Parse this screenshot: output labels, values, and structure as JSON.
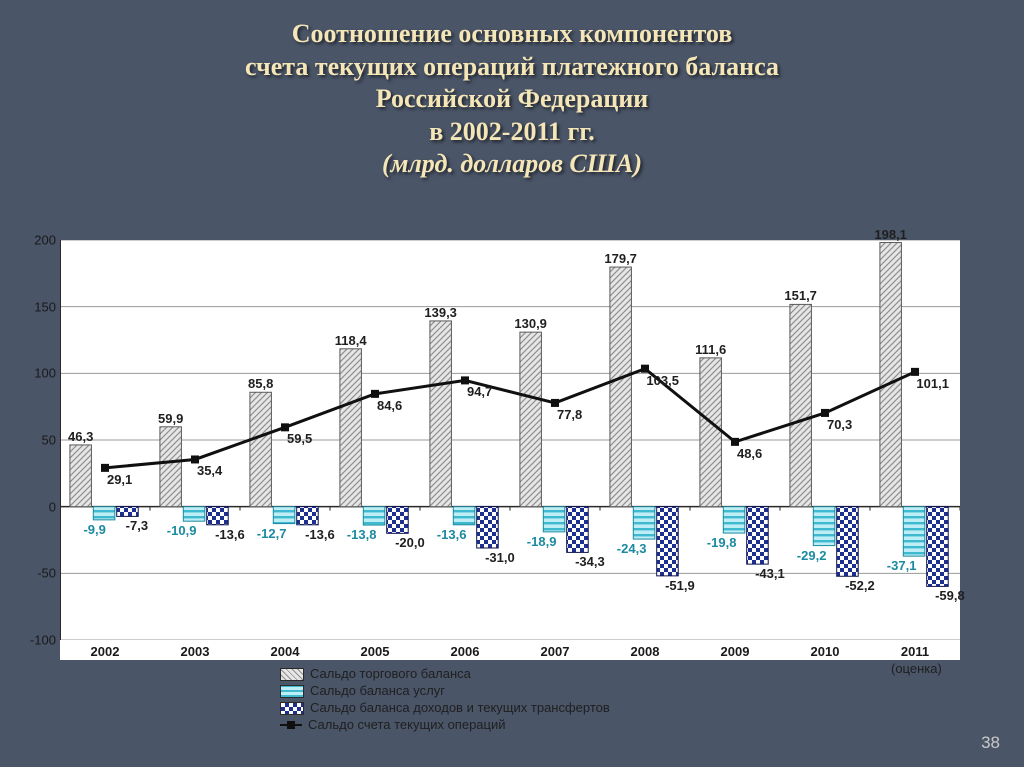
{
  "title": {
    "lines": [
      "Соотношение основных компонентов",
      "счета текущих операций платежного баланса",
      "Российской Федерации",
      "в 2002-2011 гг."
    ],
    "subtitle": "(млрд. долларов США)",
    "color": "#f5e6b8",
    "fontsize": 26
  },
  "page_number": "38",
  "background_color": "#4a5568",
  "chart": {
    "type": "bar+line",
    "background_color": "#ffffff",
    "font_family": "Arial",
    "ylim": [
      -100,
      200
    ],
    "ytick_step": 50,
    "yticks": [
      -100,
      -50,
      0,
      50,
      100,
      150,
      200
    ],
    "gridline_color": "#9a9a9a",
    "axis_color": "#2a2a2a",
    "categories": [
      "2002",
      "2003",
      "2004",
      "2005",
      "2006",
      "2007",
      "2008",
      "2009",
      "2010",
      "2011"
    ],
    "x_note": {
      "index": 9,
      "text": "(оценка)"
    },
    "series": [
      {
        "key": "trade",
        "name": "Сальдо торгового баланса",
        "type": "bar",
        "pattern": "diagonal",
        "fill": "#bfbfbf",
        "stroke": "#5a5a5a",
        "label_color": "#1f1f1f",
        "values": [
          46.3,
          59.9,
          85.8,
          118.4,
          139.3,
          130.9,
          179.7,
          111.6,
          151.7,
          198.1
        ],
        "labels": [
          "46,3",
          "59,9",
          "85,8",
          "118,4",
          "139,3",
          "130,9",
          "179,7",
          "111,6",
          "151,7",
          "198,1"
        ]
      },
      {
        "key": "services",
        "name": "Сальдо баланса услуг",
        "type": "bar",
        "pattern": "hstripe",
        "fill": "#7fd8e6",
        "stroke": "#1a8aa0",
        "label_color": "#1a8aa0",
        "values": [
          -9.9,
          -10.9,
          -12.7,
          -13.8,
          -13.6,
          -18.9,
          -24.3,
          -19.8,
          -29.2,
          -37.1
        ],
        "labels": [
          "-9,9",
          "-10,9",
          "-12,7",
          "-13,8",
          "-13,6",
          "-18,9",
          "-24,3",
          "-19,8",
          "-29,2",
          "-37,1"
        ]
      },
      {
        "key": "income",
        "name": "Сальдо баланса доходов и текущих трансфертов",
        "type": "bar",
        "pattern": "checker",
        "fill": "#1d2f8f",
        "stroke": "#0e1550",
        "label_color": "#1f1f1f",
        "values": [
          -7.3,
          -13.6,
          -13.6,
          -20.0,
          -31.0,
          -34.3,
          -51.9,
          -43.1,
          -52.2,
          -59.8
        ],
        "labels": [
          "-7,3",
          "-13,6",
          "-13,6",
          "-20,0",
          "-31,0",
          "-34,3",
          "-51,9",
          "-43,1",
          "-52,2",
          "-59,8"
        ]
      },
      {
        "key": "current",
        "name": "Сальдо счета текущих операций",
        "type": "line",
        "stroke": "#101010",
        "marker": "square",
        "marker_fill": "#101010",
        "line_width": 3,
        "label_color": "#1f1f1f",
        "values": [
          29.1,
          35.4,
          59.5,
          84.6,
          94.7,
          77.8,
          103.5,
          48.6,
          70.3,
          101.1
        ],
        "labels": [
          "29,1",
          "35,4",
          "59,5",
          "84,6",
          "94,7",
          "77,8",
          "103,5",
          "48,6",
          "70,3",
          "101,1"
        ]
      }
    ],
    "bar_group_width": 0.78,
    "label_fontsize": 13,
    "axis_label_fontsize": 13
  },
  "legend": {
    "position": "bottom",
    "font_size": 13
  }
}
